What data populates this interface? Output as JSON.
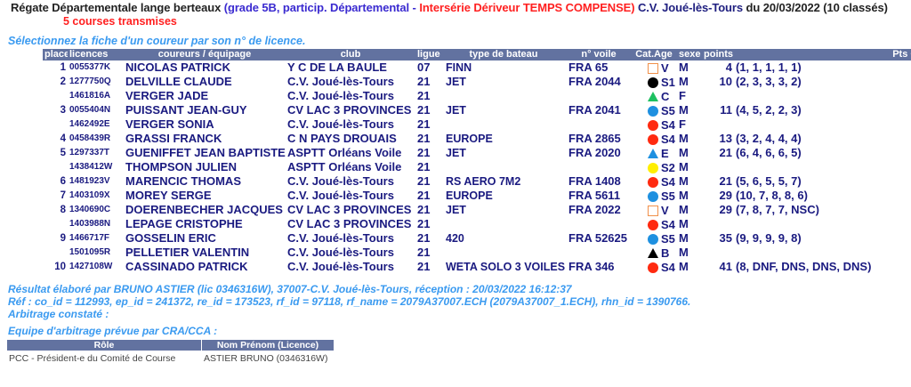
{
  "header": {
    "regatta": "Régate Départementale lange berteaux",
    "grade": "(grade 5B, particip. Départemental -",
    "series": "Intersérie Dériveur TEMPS COMPENSE)",
    "club": "C.V. Joué-lès-Tours",
    "date": "du 20/03/2022 (10 classés)",
    "races": "5 courses transmises"
  },
  "instruction": "Sélectionnez la fiche d'un coureur par son n° de licence.",
  "columns": [
    "place",
    "licences",
    "coureurs / équipage",
    "club",
    "ligue",
    "type de bateau",
    "n° voile",
    "Cat.Age",
    "sexe",
    "points",
    "",
    "Pts CNL"
  ],
  "colors": {
    "header_bg": "#6272a0",
    "S1": "#000000",
    "C": "#1ec060",
    "S5": "#1e90e0",
    "S4": "#ff2a10",
    "S2": "#ffee00",
    "E": "#1e90e0",
    "B": "#000000",
    "V": "#f0904a"
  },
  "rows": [
    {
      "place": "1",
      "lic": "0055377K",
      "name": "NICOLAS PATRICK",
      "club": "Y C DE LA BAULE",
      "ligue": "07",
      "boat": "FINN",
      "voile": "FRA 65",
      "cat": "V",
      "shape": "square",
      "sexe": "M",
      "pts": "4",
      "det": "(1, 1, 1, 1, 1)",
      "cnl": "-"
    },
    {
      "place": "2",
      "lic": "1277750Q",
      "name": "DELVILLE CLAUDE",
      "club": "C.V. Joué-lès-Tours",
      "ligue": "21",
      "boat": "JET",
      "voile": "FRA 2044",
      "cat": "S1",
      "shape": "circle",
      "sexe": "M",
      "pts": "10",
      "det": "(2, 3, 3, 3, 2)",
      "cnl": "-"
    },
    {
      "place": "",
      "lic": "1461816A",
      "name": "VERGER JADE",
      "club": "C.V. Joué-lès-Tours",
      "ligue": "21",
      "boat": "",
      "voile": "",
      "cat": "C",
      "shape": "triangle",
      "sexe": "F",
      "pts": "",
      "det": "",
      "cnl": ""
    },
    {
      "place": "3",
      "lic": "0055404N",
      "name": "PUISSANT JEAN-GUY",
      "club": "CV LAC 3 PROVINCES",
      "ligue": "21",
      "boat": "JET",
      "voile": "FRA 2041",
      "cat": "S5",
      "shape": "circle",
      "sexe": "M",
      "pts": "11",
      "det": "(4, 5, 2, 2, 3)",
      "cnl": "-"
    },
    {
      "place": "",
      "lic": "1462492E",
      "name": "VERGER SONIA",
      "club": "C.V. Joué-lès-Tours",
      "ligue": "21",
      "boat": "",
      "voile": "",
      "cat": "S4",
      "shape": "circle",
      "sexe": "F",
      "pts": "",
      "det": "",
      "cnl": ""
    },
    {
      "place": "4",
      "lic": "0458439R",
      "name": "GRASSI FRANCK",
      "club": "C N PAYS DROUAIS",
      "ligue": "21",
      "boat": "EUROPE",
      "voile": "FRA 2865",
      "cat": "S4",
      "shape": "circle",
      "sexe": "M",
      "pts": "13",
      "det": "(3, 2, 4, 4, 4)",
      "cnl": "-"
    },
    {
      "place": "5",
      "lic": "1297337T",
      "name": "GUENIFFET JEAN BAPTISTE",
      "club": "ASPTT Orléans Voile",
      "ligue": "21",
      "boat": "JET",
      "voile": "FRA 2020",
      "cat": "E",
      "shape": "triangle",
      "sexe": "M",
      "pts": "21",
      "det": "(6, 4, 6, 6, 5)",
      "cnl": "-"
    },
    {
      "place": "",
      "lic": "1438412W",
      "name": "THOMPSON JULIEN",
      "club": "ASPTT Orléans Voile",
      "ligue": "21",
      "boat": "",
      "voile": "",
      "cat": "S2",
      "shape": "circle",
      "sexe": "M",
      "pts": "",
      "det": "",
      "cnl": ""
    },
    {
      "place": "6",
      "lic": "1481923V",
      "name": "MARENCIC THOMAS",
      "club": "C.V. Joué-lès-Tours",
      "ligue": "21",
      "boat": "RS AERO 7M2",
      "voile": "FRA 1408",
      "cat": "S4",
      "shape": "circle",
      "sexe": "M",
      "pts": "21",
      "det": "(5, 6, 5, 5, 7)",
      "cnl": "-"
    },
    {
      "place": "7",
      "lic": "1403109X",
      "name": "MOREY SERGE",
      "club": "C.V. Joué-lès-Tours",
      "ligue": "21",
      "boat": "EUROPE",
      "voile": "FRA 5611",
      "cat": "S5",
      "shape": "circle",
      "sexe": "M",
      "pts": "29",
      "det": "(10, 7, 8, 8, 6)",
      "cnl": "-"
    },
    {
      "place": "8",
      "lic": "1340690C",
      "name": "DOERENBECHER JACQUES",
      "club": "CV LAC 3 PROVINCES",
      "ligue": "21",
      "boat": "JET",
      "voile": "FRA 2022",
      "cat": "V",
      "shape": "square",
      "sexe": "M",
      "pts": "29",
      "det": "(7, 8, 7, 7, NSC)",
      "cnl": "-"
    },
    {
      "place": "",
      "lic": "1403988N",
      "name": "LEPAGE CRISTOPHE",
      "club": "CV LAC 3 PROVINCES",
      "ligue": "21",
      "boat": "",
      "voile": "",
      "cat": "S4",
      "shape": "circle",
      "sexe": "M",
      "pts": "",
      "det": "",
      "cnl": ""
    },
    {
      "place": "9",
      "lic": "1466717F",
      "name": "GOSSELIN ERIC",
      "club": "C.V. Joué-lès-Tours",
      "ligue": "21",
      "boat": "420",
      "voile": "FRA 52625",
      "cat": "S5",
      "shape": "circle",
      "sexe": "M",
      "pts": "35",
      "det": "(9, 9, 9, 9, 8)",
      "cnl": "-"
    },
    {
      "place": "",
      "lic": "1501095R",
      "name": "PELLETIER VALENTIN",
      "club": "C.V. Joué-lès-Tours",
      "ligue": "21",
      "boat": "",
      "voile": "",
      "cat": "B",
      "shape": "triangle",
      "sexe": "M",
      "pts": "",
      "det": "",
      "cnl": ""
    },
    {
      "place": "10",
      "lic": "1427108W",
      "name": "CASSINADO PATRICK",
      "club": "C.V. Joué-lès-Tours",
      "ligue": "21",
      "boat": "WETA SOLO 3 VOILES",
      "voile": "FRA 346",
      "cat": "S4",
      "shape": "circle",
      "sexe": "M",
      "pts": "41",
      "det": "(8, DNF, DNS, DNS, DNS)",
      "cnl": "-"
    }
  ],
  "footer": {
    "result": "Résultat élaboré par BRUNO ASTIER (lic 0346316W), 37007-C.V. Joué-lès-Tours, réception : 20/03/2022 16:12:37",
    "ref": "Réf : co_id = 112993, ep_id = 241372, re_id = 173523, rf_id = 97118, rf_name = 2079A37007.ECH (2079A37007_1.ECH), rhn_id = 1390766.",
    "arbitrage": "Arbitrage constaté :",
    "equipe": "Equipe d'arbitrage prévue par CRA/CCA :"
  },
  "arbitrage_table": {
    "columns": [
      "Rôle",
      "Nom Prénom (Licence)"
    ],
    "rows": [
      {
        "role": "PCC - Président-e du Comité de Course",
        "name": "ASTIER BRUNO (0346316W)"
      }
    ]
  }
}
